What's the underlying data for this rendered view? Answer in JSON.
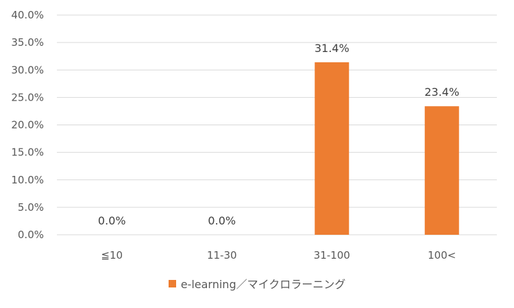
{
  "chart_data": {
    "type": "bar",
    "categories": [
      "≦10",
      "11-30",
      "31-100",
      "100<"
    ],
    "series": [
      {
        "name": "e-learning／マイクロラーニング",
        "values": [
          0.0,
          0.0,
          31.4,
          23.4
        ],
        "value_labels": [
          "0.0%",
          "0.0%",
          "31.4%",
          "23.4%"
        ],
        "color": "#ED7D31"
      }
    ],
    "ylim": [
      0,
      40
    ],
    "yticks": [
      0,
      5,
      10,
      15,
      20,
      25,
      30,
      35,
      40
    ],
    "ytick_labels": [
      "0.0%",
      "5.0%",
      "10.0%",
      "15.0%",
      "20.0%",
      "25.0%",
      "30.0%",
      "35.0%",
      "40.0%"
    ],
    "grid": true,
    "legend_position": "bottom"
  }
}
